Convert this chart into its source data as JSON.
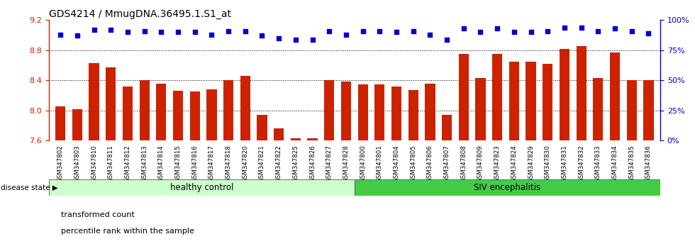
{
  "title": "GDS4214 / MmugDNA.36495.1.S1_at",
  "samples": [
    "GSM347802",
    "GSM347803",
    "GSM347810",
    "GSM347811",
    "GSM347812",
    "GSM347813",
    "GSM347814",
    "GSM347815",
    "GSM347816",
    "GSM347817",
    "GSM347818",
    "GSM347820",
    "GSM347821",
    "GSM347822",
    "GSM347825",
    "GSM347826",
    "GSM347827",
    "GSM347828",
    "GSM347800",
    "GSM347801",
    "GSM347804",
    "GSM347805",
    "GSM347806",
    "GSM347807",
    "GSM347808",
    "GSM347809",
    "GSM347823",
    "GSM347824",
    "GSM347829",
    "GSM347830",
    "GSM347831",
    "GSM347832",
    "GSM347833",
    "GSM347834",
    "GSM347835",
    "GSM347836"
  ],
  "bar_values": [
    8.05,
    8.02,
    8.63,
    8.57,
    8.32,
    8.4,
    8.36,
    8.26,
    8.25,
    8.28,
    8.4,
    8.46,
    7.94,
    7.76,
    7.63,
    7.63,
    8.4,
    8.38,
    8.35,
    8.35,
    8.32,
    8.27,
    8.36,
    7.94,
    8.75,
    8.43,
    8.75,
    8.65,
    8.65,
    8.62,
    8.82,
    8.85,
    8.43,
    8.77,
    8.4,
    8.4
  ],
  "percentile_values": [
    88,
    87,
    92,
    92,
    90,
    91,
    90,
    90,
    90,
    88,
    91,
    91,
    87,
    85,
    84,
    84,
    91,
    88,
    91,
    91,
    90,
    91,
    88,
    84,
    93,
    90,
    93,
    90,
    90,
    91,
    94,
    94,
    91,
    93,
    91,
    89
  ],
  "healthy_count": 18,
  "ylim_left": [
    7.6,
    9.2
  ],
  "ylim_right": [
    0,
    100
  ],
  "bar_color": "#CC2200",
  "dot_color": "#0000CC",
  "healthy_color": "#CCFFCC",
  "siv_color": "#44CC44",
  "healthy_label": "healthy control",
  "siv_label": "SIV encephalitis",
  "disease_state_label": "disease state",
  "legend_bar_label": "transformed count",
  "legend_dot_label": "percentile rank within the sample",
  "yticks_left": [
    7.6,
    8.0,
    8.4,
    8.8,
    9.2
  ],
  "yticks_right": [
    0,
    25,
    50,
    75,
    100
  ],
  "background_color": "#FFFFFF"
}
